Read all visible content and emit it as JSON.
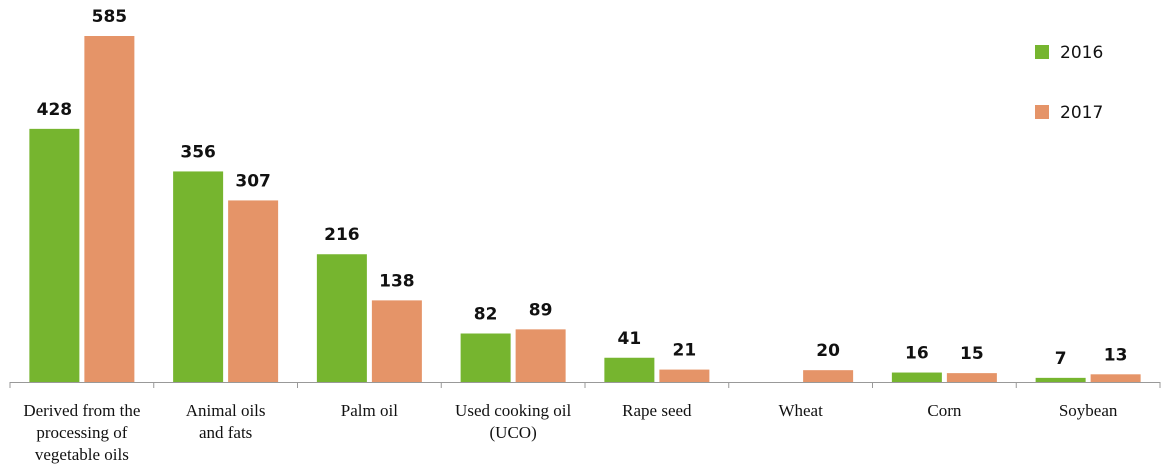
{
  "chart_data": {
    "type": "bar",
    "categories": [
      "Derived from the\nprocessing of\nvegetable oils",
      "Animal oils\nand fats",
      "Palm oil",
      "Used cooking oil\n(UCO)",
      "Rape seed",
      "Wheat",
      "Corn",
      "Soybean"
    ],
    "series": [
      {
        "name": "2016",
        "color": "#76b52f",
        "values": [
          428,
          356,
          216,
          82,
          41,
          null,
          16,
          7
        ]
      },
      {
        "name": "2017",
        "color": "#e59468",
        "values": [
          585,
          307,
          138,
          89,
          21,
          20,
          15,
          13
        ]
      }
    ],
    "legend": "top-right"
  }
}
